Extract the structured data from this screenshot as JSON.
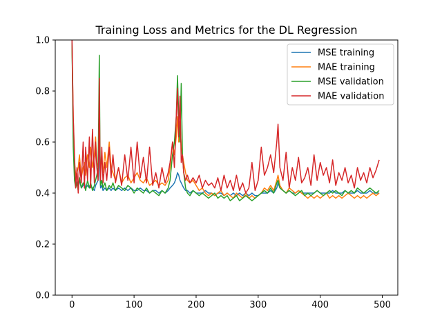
{
  "chart_data": {
    "type": "line",
    "title": "Training Loss and Metrics for the DL Regression",
    "xlabel": "",
    "ylabel": "",
    "xlim": [
      -27,
      525
    ],
    "ylim": [
      0.0,
      1.0
    ],
    "x_ticks": [
      0,
      100,
      200,
      300,
      400,
      500
    ],
    "y_ticks": [
      0.0,
      0.2,
      0.4,
      0.6,
      0.8,
      1.0
    ],
    "x_tick_labels": [
      "0",
      "100",
      "200",
      "300",
      "400",
      "500"
    ],
    "y_tick_labels": [
      "0.0",
      "0.2",
      "0.4",
      "0.6",
      "0.8",
      "1.0"
    ],
    "legend_position": "top-right",
    "x": [
      0,
      2,
      4,
      6,
      8,
      10,
      12,
      15,
      18,
      20,
      22,
      25,
      28,
      30,
      33,
      36,
      38,
      40,
      42,
      43,
      44,
      45,
      46,
      48,
      50,
      53,
      56,
      60,
      63,
      66,
      70,
      75,
      80,
      85,
      90,
      95,
      100,
      105,
      110,
      115,
      120,
      125,
      130,
      135,
      140,
      145,
      150,
      155,
      158,
      162,
      165,
      168,
      170,
      172,
      174,
      176,
      178,
      180,
      183,
      186,
      190,
      195,
      200,
      205,
      210,
      215,
      220,
      225,
      230,
      235,
      240,
      245,
      250,
      255,
      260,
      265,
      270,
      275,
      280,
      285,
      290,
      295,
      300,
      305,
      310,
      315,
      320,
      325,
      330,
      332,
      335,
      340,
      345,
      350,
      355,
      360,
      365,
      370,
      375,
      380,
      385,
      390,
      395,
      400,
      405,
      410,
      415,
      420,
      425,
      430,
      435,
      440,
      445,
      450,
      455,
      460,
      465,
      470,
      475,
      480,
      485,
      490,
      495
    ],
    "series": [
      {
        "name": "MSE training",
        "color": "#1f77b4",
        "values": [
          1.0,
          0.62,
          0.5,
          0.45,
          0.44,
          0.43,
          0.45,
          0.42,
          0.43,
          0.44,
          0.42,
          0.43,
          0.42,
          0.43,
          0.42,
          0.41,
          0.43,
          0.44,
          0.45,
          0.5,
          0.78,
          0.47,
          0.42,
          0.43,
          0.41,
          0.42,
          0.41,
          0.42,
          0.41,
          0.42,
          0.41,
          0.42,
          0.41,
          0.42,
          0.41,
          0.42,
          0.41,
          0.41,
          0.42,
          0.41,
          0.41,
          0.4,
          0.41,
          0.41,
          0.4,
          0.41,
          0.4,
          0.41,
          0.42,
          0.43,
          0.44,
          0.46,
          0.48,
          0.47,
          0.45,
          0.44,
          0.43,
          0.42,
          0.41,
          0.41,
          0.4,
          0.41,
          0.4,
          0.4,
          0.4,
          0.41,
          0.4,
          0.4,
          0.39,
          0.4,
          0.4,
          0.39,
          0.4,
          0.39,
          0.4,
          0.39,
          0.4,
          0.39,
          0.4,
          0.39,
          0.4,
          0.39,
          0.39,
          0.4,
          0.4,
          0.4,
          0.41,
          0.4,
          0.42,
          0.44,
          0.42,
          0.41,
          0.4,
          0.41,
          0.4,
          0.4,
          0.41,
          0.4,
          0.4,
          0.4,
          0.4,
          0.4,
          0.41,
          0.4,
          0.4,
          0.4,
          0.4,
          0.41,
          0.4,
          0.4,
          0.4,
          0.41,
          0.4,
          0.4,
          0.4,
          0.41,
          0.4,
          0.4,
          0.4,
          0.41,
          0.4,
          0.4,
          0.4
        ]
      },
      {
        "name": "MAE training",
        "color": "#ff7f0e",
        "values": [
          0.98,
          0.7,
          0.52,
          0.47,
          0.48,
          0.5,
          0.55,
          0.46,
          0.5,
          0.52,
          0.47,
          0.55,
          0.5,
          0.58,
          0.5,
          0.55,
          0.62,
          0.52,
          0.5,
          0.6,
          0.65,
          0.55,
          0.5,
          0.53,
          0.48,
          0.56,
          0.5,
          0.6,
          0.5,
          0.48,
          0.45,
          0.5,
          0.44,
          0.46,
          0.47,
          0.44,
          0.46,
          0.48,
          0.45,
          0.44,
          0.46,
          0.43,
          0.44,
          0.45,
          0.43,
          0.44,
          0.43,
          0.45,
          0.5,
          0.6,
          0.55,
          0.62,
          0.7,
          0.6,
          0.68,
          0.58,
          0.55,
          0.52,
          0.48,
          0.45,
          0.44,
          0.45,
          0.43,
          0.41,
          0.42,
          0.4,
          0.39,
          0.4,
          0.39,
          0.4,
          0.41,
          0.39,
          0.4,
          0.39,
          0.38,
          0.4,
          0.39,
          0.38,
          0.4,
          0.38,
          0.39,
          0.38,
          0.39,
          0.4,
          0.42,
          0.41,
          0.43,
          0.41,
          0.45,
          0.47,
          0.43,
          0.41,
          0.4,
          0.42,
          0.41,
          0.4,
          0.41,
          0.4,
          0.39,
          0.38,
          0.39,
          0.38,
          0.39,
          0.38,
          0.39,
          0.4,
          0.38,
          0.39,
          0.38,
          0.39,
          0.38,
          0.39,
          0.4,
          0.39,
          0.38,
          0.39,
          0.38,
          0.39,
          0.38,
          0.39,
          0.4,
          0.39,
          0.4
        ]
      },
      {
        "name": "MSE validation",
        "color": "#2ca02c",
        "values": [
          0.99,
          0.58,
          0.45,
          0.42,
          0.44,
          0.41,
          0.46,
          0.42,
          0.44,
          0.43,
          0.41,
          0.45,
          0.42,
          0.44,
          0.41,
          0.43,
          0.45,
          0.47,
          0.5,
          0.7,
          0.94,
          0.6,
          0.43,
          0.45,
          0.42,
          0.44,
          0.41,
          0.43,
          0.42,
          0.44,
          0.41,
          0.43,
          0.42,
          0.41,
          0.43,
          0.42,
          0.4,
          0.42,
          0.41,
          0.4,
          0.42,
          0.4,
          0.41,
          0.4,
          0.39,
          0.41,
          0.4,
          0.42,
          0.45,
          0.55,
          0.6,
          0.7,
          0.86,
          0.7,
          0.6,
          0.83,
          0.55,
          0.48,
          0.42,
          0.4,
          0.39,
          0.41,
          0.4,
          0.39,
          0.4,
          0.39,
          0.38,
          0.39,
          0.4,
          0.38,
          0.39,
          0.38,
          0.39,
          0.37,
          0.38,
          0.39,
          0.37,
          0.38,
          0.39,
          0.38,
          0.37,
          0.38,
          0.39,
          0.4,
          0.41,
          0.4,
          0.42,
          0.4,
          0.44,
          0.45,
          0.42,
          0.41,
          0.4,
          0.41,
          0.4,
          0.39,
          0.4,
          0.41,
          0.39,
          0.4,
          0.39,
          0.4,
          0.41,
          0.4,
          0.39,
          0.4,
          0.41,
          0.4,
          0.41,
          0.4,
          0.39,
          0.41,
          0.4,
          0.41,
          0.4,
          0.42,
          0.41,
          0.4,
          0.41,
          0.42,
          0.41,
          0.4,
          0.41
        ]
      },
      {
        "name": "MAE validation",
        "color": "#d62728",
        "values": [
          1.0,
          0.7,
          0.55,
          0.42,
          0.5,
          0.4,
          0.52,
          0.44,
          0.6,
          0.42,
          0.58,
          0.45,
          0.62,
          0.42,
          0.65,
          0.44,
          0.6,
          0.5,
          0.45,
          0.55,
          0.85,
          0.55,
          0.45,
          0.58,
          0.44,
          0.52,
          0.45,
          0.58,
          0.46,
          0.55,
          0.44,
          0.5,
          0.43,
          0.55,
          0.45,
          0.58,
          0.44,
          0.6,
          0.46,
          0.54,
          0.44,
          0.58,
          0.43,
          0.48,
          0.42,
          0.5,
          0.44,
          0.48,
          0.52,
          0.6,
          0.5,
          0.7,
          0.81,
          0.62,
          0.78,
          0.52,
          0.55,
          0.48,
          0.45,
          0.47,
          0.44,
          0.46,
          0.44,
          0.47,
          0.42,
          0.45,
          0.43,
          0.44,
          0.42,
          0.46,
          0.41,
          0.47,
          0.42,
          0.45,
          0.41,
          0.47,
          0.41,
          0.44,
          0.4,
          0.42,
          0.52,
          0.41,
          0.45,
          0.58,
          0.47,
          0.5,
          0.55,
          0.48,
          0.6,
          0.67,
          0.5,
          0.45,
          0.56,
          0.42,
          0.5,
          0.45,
          0.54,
          0.44,
          0.46,
          0.5,
          0.43,
          0.55,
          0.45,
          0.52,
          0.47,
          0.5,
          0.44,
          0.53,
          0.43,
          0.48,
          0.45,
          0.5,
          0.44,
          0.47,
          0.42,
          0.5,
          0.45,
          0.48,
          0.44,
          0.5,
          0.46,
          0.49,
          0.53
        ]
      }
    ]
  }
}
